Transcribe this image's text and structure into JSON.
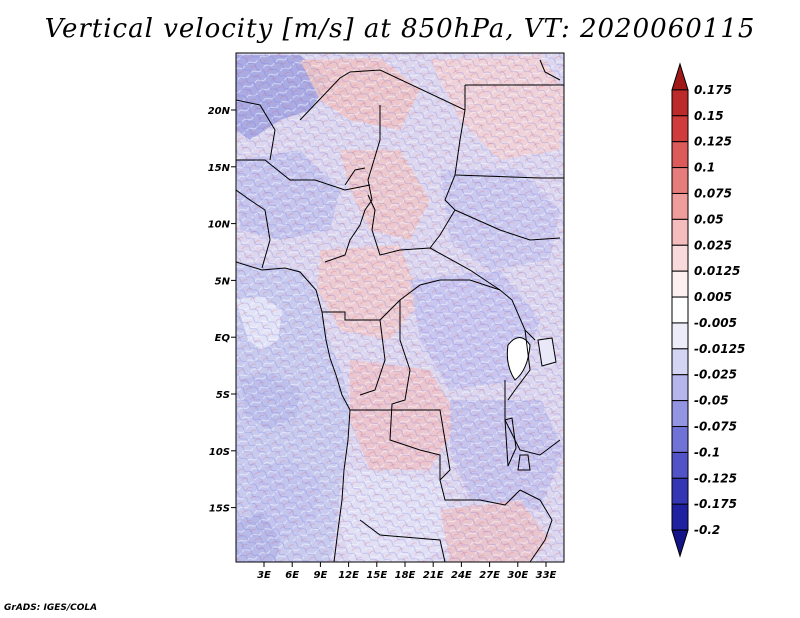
{
  "title": "Vertical velocity [m/s] at 850hPa, VT: 2020060115",
  "credit": "GrADS: IGES/COLA",
  "lat_labels": [
    "20N",
    "15N",
    "10N",
    "5N",
    "EQ",
    "5S",
    "10S",
    "15S"
  ],
  "lon_labels": [
    "3E",
    "6E",
    "9E",
    "12E",
    "15E",
    "18E",
    "21E",
    "24E",
    "27E",
    "30E",
    "33E"
  ],
  "colorbar": {
    "levels": [
      "0.175",
      "0.15",
      "0.125",
      "0.1",
      "0.075",
      "0.05",
      "0.025",
      "0.0125",
      "0.005",
      "-0.005",
      "-0.0125",
      "-0.025",
      "-0.05",
      "-0.075",
      "-0.1",
      "-0.125",
      "-0.175",
      "-0.2"
    ],
    "colors": [
      "#a01818",
      "#bc2a2a",
      "#d03c3c",
      "#dc5a5a",
      "#e67c7c",
      "#ee9c9c",
      "#f4bcbc",
      "#f9dada",
      "#fdf0f0",
      "#ffffff",
      "#ecedf9",
      "#d4d5f3",
      "#b5b6ec",
      "#9394e2",
      "#7172d6",
      "#5153c6",
      "#3436b4",
      "#1f21a0",
      "#14138a"
    ]
  }
}
